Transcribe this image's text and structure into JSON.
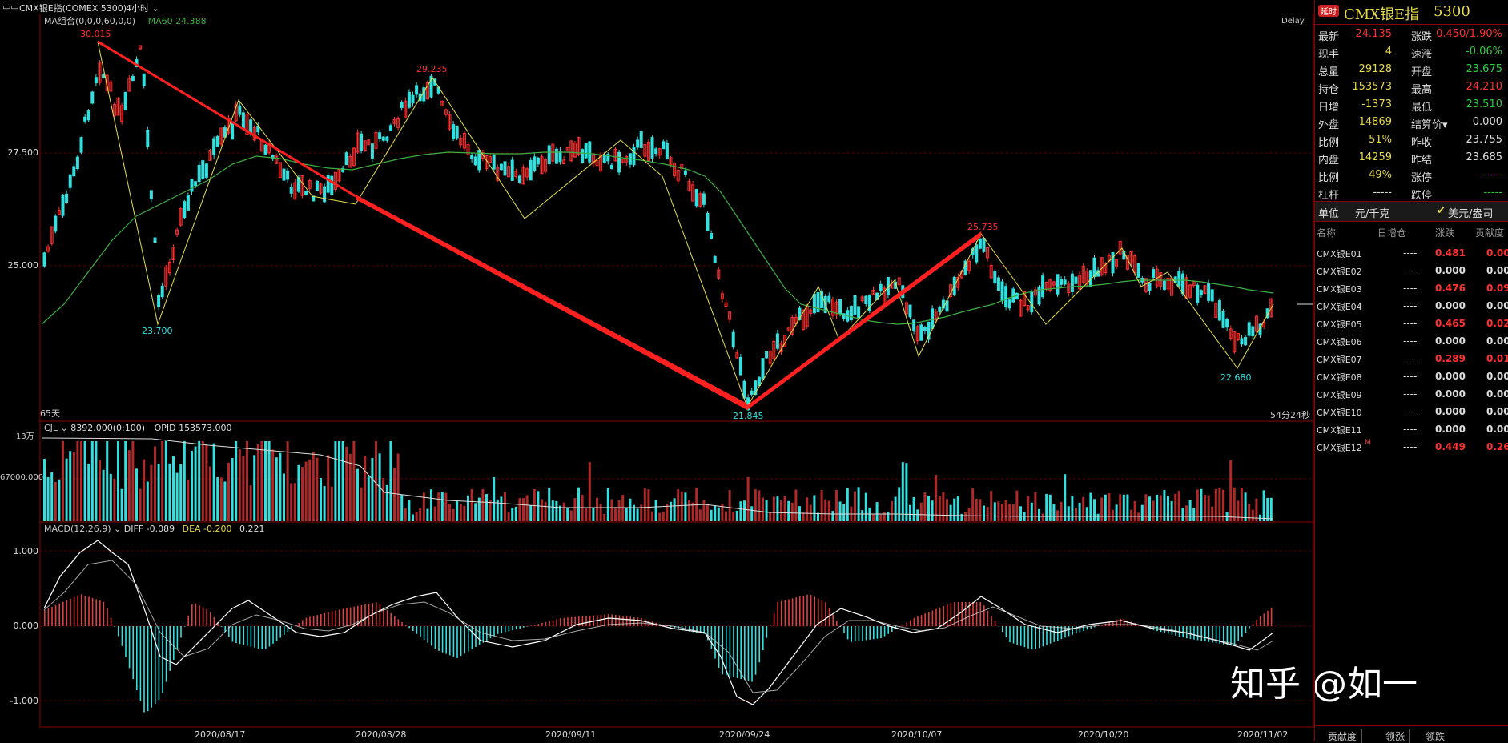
{
  "topbar": {
    "icon": "window-icon",
    "symbol": "CMX银E指(COMEX 5300)",
    "period": "4小时"
  },
  "main_indicator": {
    "label": "MA组合(0,0,0,60,0,0)",
    "ma60": "MA60 24.388",
    "delay": "Delay",
    "range_label": "65天",
    "countdown": "54分24秒"
  },
  "price_axis": [
    "27.500",
    "25.000"
  ],
  "price_annotations": [
    "30.015",
    "23.700",
    "29.235",
    "21.845",
    "25.735",
    "22.680"
  ],
  "volume_indicator": {
    "cjl": "CJL",
    "values": "8392.000(0:100)",
    "opid": "OPID 153573.000",
    "axis_top": "13万",
    "axis_mid": "67000.000"
  },
  "macd_indicator": {
    "label": "MACD(12,26,9)",
    "diff": "DIFF -0.089",
    "dea": "DEA -0.200",
    "macd": "0.221",
    "axis": [
      "1.000",
      "0.000",
      "-1.000"
    ]
  },
  "x_axis": [
    "2020/08/17",
    "2020/08/28",
    "2020/09/11",
    "2020/09/24",
    "2020/10/07",
    "2020/10/20",
    "2020/11/02"
  ],
  "quote_panel": {
    "badge": "延时",
    "title": "CMX银E指",
    "code": "5300",
    "rows": [
      {
        "l1": "最新",
        "v1": "24.135",
        "c1": "hl",
        "l2": "涨跌",
        "v2": "0.450/1.90%",
        "c2": "hl"
      },
      {
        "l1": "现手",
        "v1": "4",
        "c1": "yl",
        "l2": "速涨",
        "v2": "-0.06%",
        "c2": "gr"
      },
      {
        "l1": "总量",
        "v1": "29128",
        "c1": "yl",
        "l2": "开盘",
        "v2": "23.675",
        "c2": "gr"
      },
      {
        "l1": "持仓",
        "v1": "153573",
        "c1": "yl",
        "l2": "最高",
        "v2": "24.210",
        "c2": "hl"
      },
      {
        "l1": "日增",
        "v1": "-1373",
        "c1": "yl",
        "l2": "最低",
        "v2": "23.510",
        "c2": "gr"
      },
      {
        "l1": "外盘",
        "v1": "14869",
        "c1": "yl",
        "l2": "结算价▾",
        "v2": "0.000",
        "c2": "wt"
      },
      {
        "l1": "比例",
        "v1": "51%",
        "c1": "yl",
        "l2": "昨收",
        "v2": "23.755",
        "c2": "wt"
      },
      {
        "l1": "内盘",
        "v1": "14259",
        "c1": "yl",
        "l2": "昨结",
        "v2": "23.685",
        "c2": "wt"
      },
      {
        "l1": "比例",
        "v1": "49%",
        "c1": "yl",
        "l2": "涨停",
        "v2": "-----",
        "c2": "hl"
      },
      {
        "l1": "杠杆",
        "v1": "-----",
        "c1": "wt",
        "l2": "跌停",
        "v2": "-----",
        "c2": "gr"
      }
    ],
    "unit_label": "单位",
    "unit_value": "元/千克",
    "unit_check": "✔",
    "unit_alt": "美元/盎司"
  },
  "contracts": {
    "headers": [
      "名称",
      "日增仓",
      "涨跌",
      "贡献度"
    ],
    "rows": [
      {
        "name": "CMX银E01",
        "zc": "----",
        "zd": "0.481",
        "gx": "0.00",
        "up": true
      },
      {
        "name": "CMX银E02",
        "zc": "----",
        "zd": "0.000",
        "gx": "0.00",
        "up": false
      },
      {
        "name": "CMX银E03",
        "zc": "----",
        "zd": "0.476",
        "gx": "0.09",
        "up": true
      },
      {
        "name": "CMX银E04",
        "zc": "----",
        "zd": "0.000",
        "gx": "0.00",
        "up": false
      },
      {
        "name": "CMX银E05",
        "zc": "----",
        "zd": "0.465",
        "gx": "0.02",
        "up": true
      },
      {
        "name": "CMX银E06",
        "zc": "----",
        "zd": "0.000",
        "gx": "0.00",
        "up": false
      },
      {
        "name": "CMX银E07",
        "zc": "----",
        "zd": "0.289",
        "gx": "0.01",
        "up": true
      },
      {
        "name": "CMX银E08",
        "zc": "----",
        "zd": "0.000",
        "gx": "0.00",
        "up": false
      },
      {
        "name": "CMX银E09",
        "zc": "----",
        "zd": "0.000",
        "gx": "0.00",
        "up": false
      },
      {
        "name": "CMX银E10",
        "zc": "----",
        "zd": "0.000",
        "gx": "0.00",
        "up": false
      },
      {
        "name": "CMX银E11",
        "zc": "----",
        "zd": "0.000",
        "gx": "0.00",
        "up": false
      },
      {
        "name": "CMX银E12",
        "zc": "----",
        "zd": "0.449",
        "gx": "0.26",
        "up": true,
        "mark": "M"
      }
    ]
  },
  "bottom_tabs": [
    "贡献度",
    "领涨",
    "领跌"
  ],
  "watermark": "知乎 @如一",
  "colors": {
    "up": "#ff3030",
    "down": "#33e0e0",
    "zigzag": "#e6e04a",
    "ma": "#3cb043",
    "border": "#8b0000"
  }
}
